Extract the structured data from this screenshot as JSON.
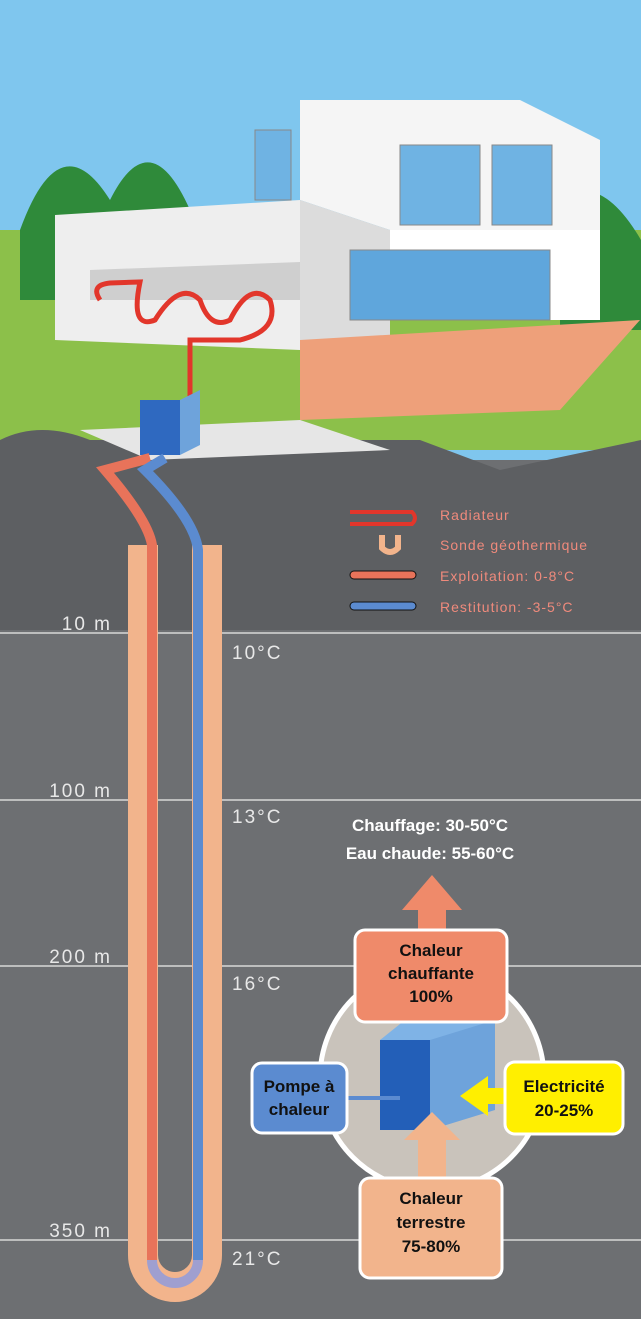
{
  "legend": [
    {
      "label": "Radiateur"
    },
    {
      "label": "Sonde géothermique"
    },
    {
      "label": "Exploitation: 0-8°C"
    },
    {
      "label": "Restitution: -3-5°C"
    }
  ],
  "depths": [
    {
      "depth": "10 m",
      "temperature": "10°C"
    },
    {
      "depth": "100 m",
      "temperature": "13°C"
    },
    {
      "depth": "200 m",
      "temperature": "16°C"
    },
    {
      "depth": "350 m",
      "temperature": "21°C"
    }
  ],
  "outputs": [
    "Chauffage: 30-50°C",
    "Eau chaude: 55-60°C"
  ],
  "heat_out": {
    "lines": [
      "Chaleur",
      "chauffante",
      "100%"
    ]
  },
  "heat_pump": {
    "lines": [
      "Pompe à",
      "chaleur"
    ]
  },
  "electricity": {
    "lines": [
      "Electricité",
      "20-25%"
    ]
  },
  "earth_heat": {
    "lines": [
      "Chaleur",
      "terrestre",
      "75-80%"
    ]
  }
}
